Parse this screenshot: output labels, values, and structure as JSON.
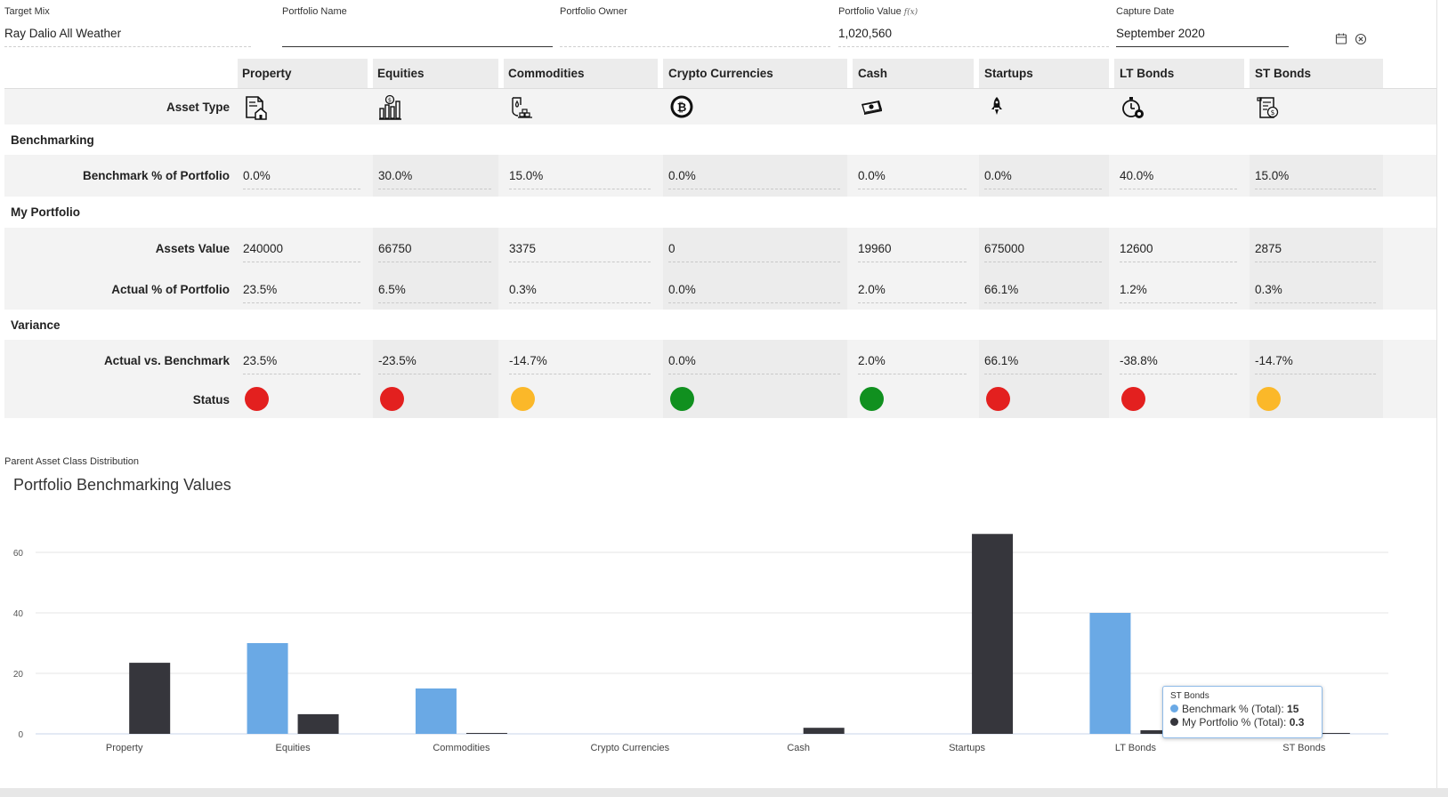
{
  "fields": {
    "target_mix": {
      "label": "Target Mix",
      "value": "Ray Dalio All Weather"
    },
    "portfolio_name": {
      "label": "Portfolio Name",
      "value": ""
    },
    "portfolio_owner": {
      "label": "Portfolio Owner",
      "value": ""
    },
    "portfolio_value": {
      "label": "Portfolio Value",
      "formula_marker": "f(x)",
      "value": "1,020,560"
    },
    "capture_date": {
      "label": "Capture Date",
      "value": "September 2020"
    }
  },
  "grid": {
    "columns": [
      "Property",
      "Equities",
      "Commodities",
      "Crypto Currencies",
      "Cash",
      "Startups",
      "LT Bonds",
      "ST Bonds"
    ],
    "asset_icons": [
      "property-icon",
      "equities-icon",
      "commodities-icon",
      "bitcoin-icon",
      "cash-icon",
      "rocket-icon",
      "lt-bonds-icon",
      "st-bonds-icon"
    ],
    "asset_type_label": "Asset Type",
    "sections": {
      "benchmarking": "Benchmarking",
      "my_portfolio": "My Portfolio",
      "variance": "Variance"
    },
    "rows": {
      "benchmark_pct": {
        "label": "Benchmark % of Portfolio",
        "values": [
          "0.0%",
          "30.0%",
          "15.0%",
          "0.0%",
          "0.0%",
          "0.0%",
          "40.0%",
          "15.0%"
        ]
      },
      "assets_value": {
        "label": "Assets Value",
        "values": [
          "240000",
          "66750",
          "3375",
          "0",
          "19960",
          "675000",
          "12600",
          "2875"
        ]
      },
      "actual_pct": {
        "label": "Actual % of Portfolio",
        "values": [
          "23.5%",
          "6.5%",
          "0.3%",
          "0.0%",
          "2.0%",
          "66.1%",
          "1.2%",
          "0.3%"
        ]
      },
      "actual_vs_benchmark": {
        "label": "Actual vs. Benchmark",
        "values": [
          "23.5%",
          "-23.5%",
          "-14.7%",
          "0.0%",
          "2.0%",
          "66.1%",
          "-38.8%",
          "-14.7%"
        ]
      },
      "status": {
        "label": "Status",
        "values": [
          "red",
          "red",
          "amber",
          "green",
          "green",
          "red",
          "red",
          "amber"
        ]
      }
    },
    "status_colors": {
      "red": "#e3201f",
      "amber": "#fbb829",
      "green": "#10901f"
    }
  },
  "chart_caption": "Parent Asset Class Distribution",
  "chart_data": {
    "type": "bar",
    "title": "Portfolio Benchmarking Values",
    "categories": [
      "Property",
      "Equities",
      "Commodities",
      "Crypto Currencies",
      "Cash",
      "Startups",
      "LT Bonds",
      "ST Bonds"
    ],
    "series": [
      {
        "name": "Benchmark % (Total)",
        "color": "#6aa9e5",
        "values": [
          0,
          30,
          15,
          0,
          0,
          0,
          40,
          15
        ]
      },
      {
        "name": "My Portfolio % (Total)",
        "color": "#36363c",
        "values": [
          23.5,
          6.5,
          0.3,
          0,
          2,
          66.1,
          1.2,
          0.3
        ]
      }
    ],
    "yticks": [
      0,
      20,
      40,
      60,
      80
    ],
    "ylim": [
      0,
      80
    ],
    "grid": true,
    "highlighted_category": "ST Bonds",
    "highlight_color": "#8ec5f7"
  },
  "tooltip": {
    "title": "ST Bonds",
    "lines": [
      {
        "name": "Benchmark % (Total)",
        "value": "15"
      },
      {
        "name": "My Portfolio % (Total)",
        "value": "0.3"
      }
    ]
  }
}
